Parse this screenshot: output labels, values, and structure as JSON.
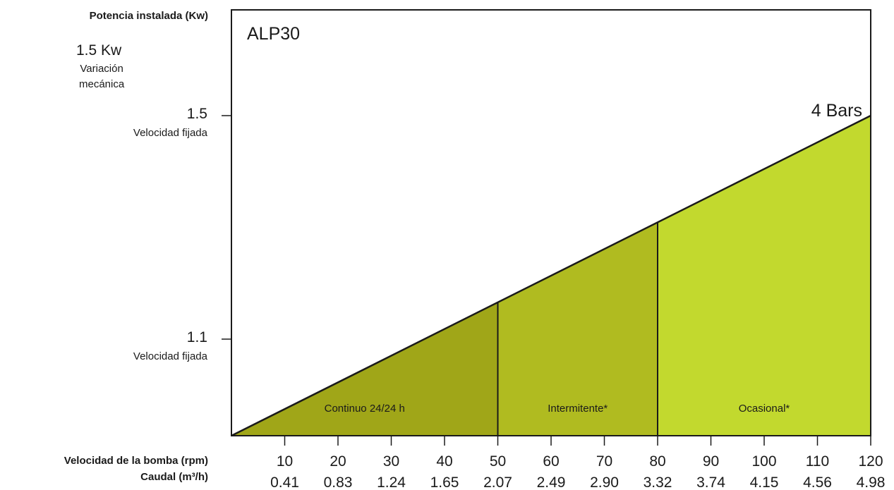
{
  "chart_data": {
    "type": "area",
    "title": "ALP30",
    "series_label": "4 Bars",
    "ylabel": "Potencia instalada (Kw)",
    "y_note_value": "1.5 Kw",
    "y_note_sub": "Variación\nmecánica",
    "y_ticks": [
      {
        "value": 1.5,
        "label": "1.5",
        "sublabel": "Velocidad fijada"
      },
      {
        "value": 1.1,
        "label": "1.1",
        "sublabel": "Velocidad fijada"
      }
    ],
    "xlabel_rpm": "Velocidad de la bomba (rpm)",
    "xlabel_flow": "Caudal (m³/h)",
    "rpm": [
      10,
      20,
      30,
      40,
      50,
      60,
      70,
      80,
      90,
      100,
      110,
      120
    ],
    "flow": [
      "0.41",
      "0.83",
      "1.24",
      "1.65",
      "2.07",
      "2.49",
      "2.90",
      "3.32",
      "3.74",
      "4.15",
      "4.56",
      "4.98"
    ],
    "x_range": [
      0,
      120
    ],
    "line": {
      "x": [
        0,
        120
      ],
      "y_fraction_of_top_tick": [
        0.0,
        1.0
      ]
    },
    "zones": [
      {
        "label": "Continuo 24/24 h",
        "from": 0,
        "to": 50,
        "color": "#a0a618"
      },
      {
        "label": "Intermitente*",
        "from": 50,
        "to": 80,
        "color": "#b0bb20"
      },
      {
        "label": "Ocasional*",
        "from": 80,
        "to": 120,
        "color": "#c2d92e"
      }
    ]
  }
}
